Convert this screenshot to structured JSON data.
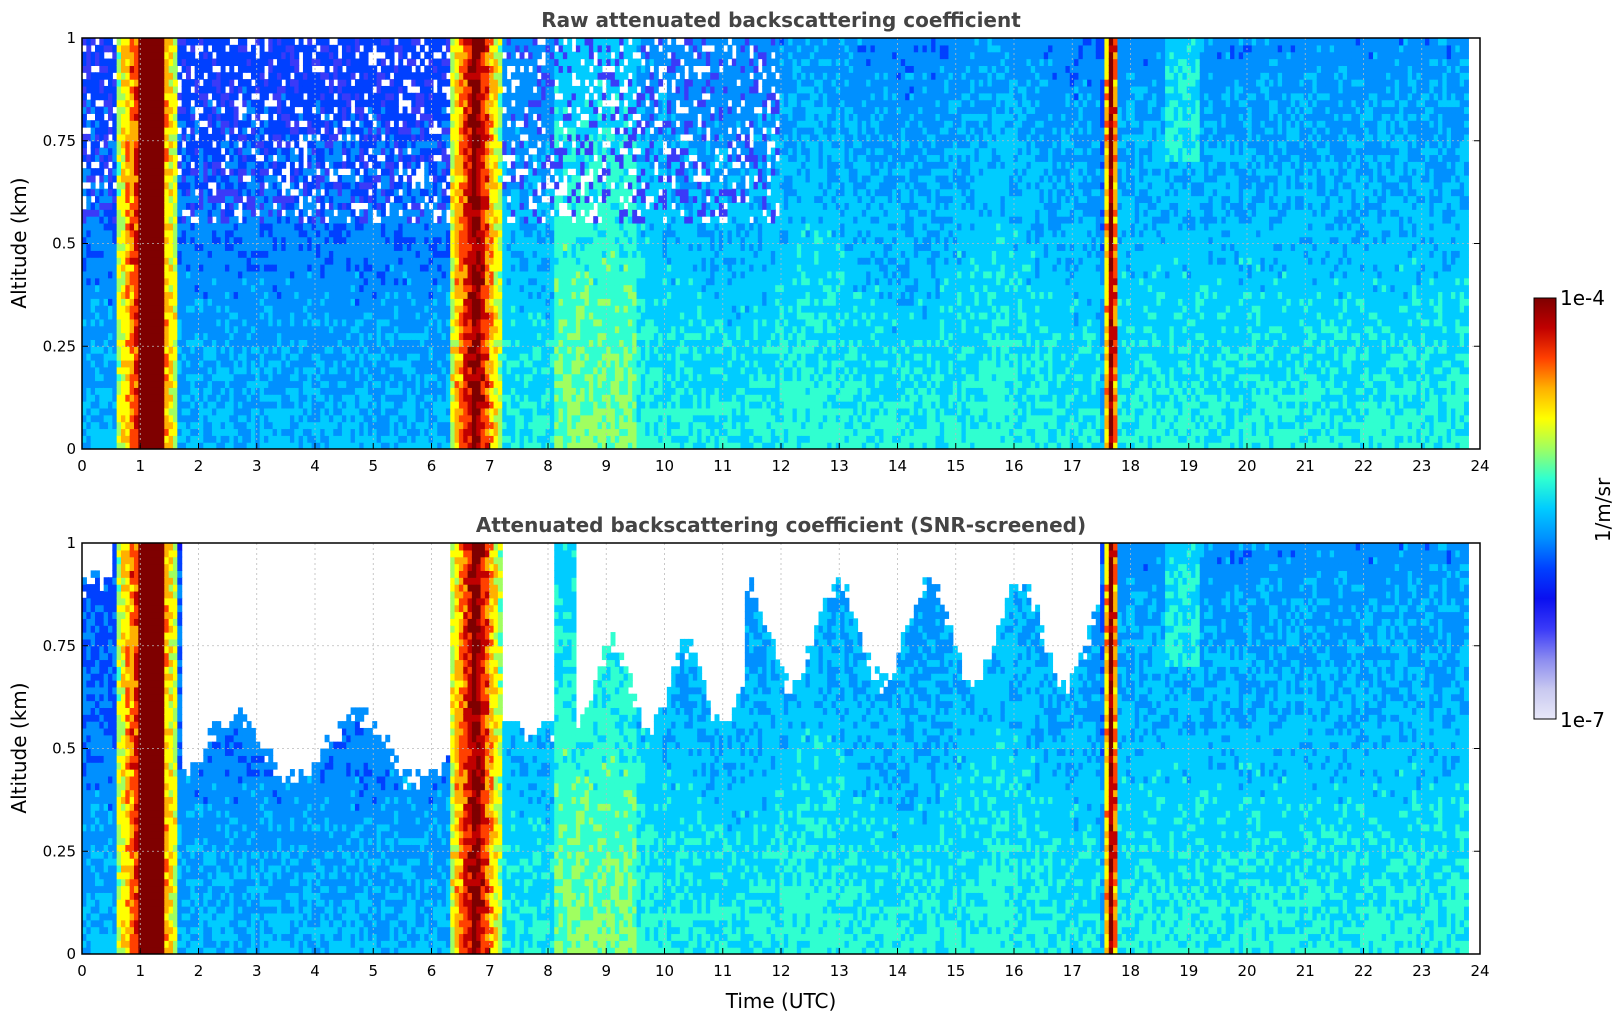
{
  "figure": {
    "colormap": [
      "#e8e8f8",
      "#c8c8f0",
      "#8a8af0",
      "#3a3af8",
      "#0a10f0",
      "#0040ff",
      "#0090ff",
      "#00ccff",
      "#30ffd0",
      "#a0ff60",
      "#ffff00",
      "#ffb000",
      "#ff4000",
      "#c00000",
      "#7f0000"
    ],
    "colorbar": {
      "label": "1/m/sr",
      "max_label": "1e-4",
      "min_label": "1e-7",
      "scale": "log",
      "range": [
        1e-07,
        0.0001
      ]
    },
    "xlabel": "Time (UTC)"
  },
  "chart_data": [
    {
      "type": "heatmap",
      "title": "Raw attenuated backscattering coefficient",
      "xlabel": "",
      "ylabel": "Altitude (km)",
      "xlim": [
        0,
        24
      ],
      "ylim": [
        0,
        1
      ],
      "x_ticks": [
        "0",
        "1",
        "2",
        "3",
        "4",
        "5",
        "6",
        "7",
        "8",
        "9",
        "10",
        "11",
        "12",
        "13",
        "14",
        "15",
        "16",
        "17",
        "18",
        "19",
        "20",
        "21",
        "22",
        "23",
        "24"
      ],
      "y_ticks": [
        "0",
        "0.25",
        "0.5",
        "0.75",
        "1"
      ],
      "grid": true,
      "data_end_hour": 23.8,
      "high_backscatter_bands": [
        {
          "start": 0.6,
          "end": 1.65,
          "peak": "1e-4"
        },
        {
          "start": 6.3,
          "end": 7.2,
          "peak": "1e-4"
        },
        {
          "start": 17.55,
          "end": 17.8,
          "peak": "1e-4"
        }
      ],
      "screened": false
    },
    {
      "type": "heatmap",
      "title": "Attenuated backscattering coefficient (SNR-screened)",
      "xlabel": "Time (UTC)",
      "ylabel": "Altitude (km)",
      "xlim": [
        0,
        24
      ],
      "ylim": [
        0,
        1
      ],
      "x_ticks": [
        "0",
        "1",
        "2",
        "3",
        "4",
        "5",
        "6",
        "7",
        "8",
        "9",
        "10",
        "11",
        "12",
        "13",
        "14",
        "15",
        "16",
        "17",
        "18",
        "19",
        "20",
        "21",
        "22",
        "23",
        "24"
      ],
      "y_ticks": [
        "0",
        "0.25",
        "0.5",
        "0.75",
        "1"
      ],
      "grid": true,
      "data_end_hour": 23.8,
      "high_backscatter_bands": [
        {
          "start": 0.6,
          "end": 1.65,
          "peak": "1e-4"
        },
        {
          "start": 6.3,
          "end": 7.2,
          "peak": "1e-4"
        },
        {
          "start": 17.55,
          "end": 17.8,
          "peak": "1e-4"
        }
      ],
      "screened": true
    }
  ]
}
